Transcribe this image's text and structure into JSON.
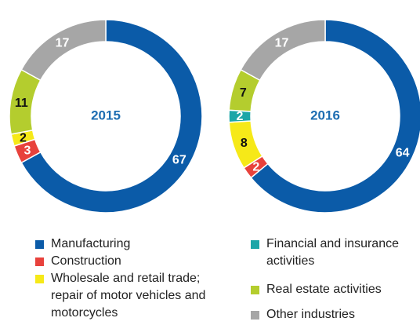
{
  "legend": [
    {
      "name": "Manufacturing",
      "color": "#0b5ba8"
    },
    {
      "name": "Construction",
      "color": "#e8423c"
    },
    {
      "name": "Wholesale and retail trade; repair of motor vehicles and motorcycles",
      "color": "#f6e918"
    },
    {
      "name": "Financial and insurance activities",
      "color": "#1ca6a8"
    },
    {
      "name": "Real estate activities",
      "color": "#b4cd2e"
    },
    {
      "name": "Other industries",
      "color": "#a6a6a6"
    }
  ],
  "chart_data": [
    {
      "type": "pie",
      "title": "2015",
      "values": [
        67,
        3,
        2,
        null,
        11,
        17
      ]
    },
    {
      "type": "pie",
      "title": "2016",
      "values": [
        64,
        2,
        8,
        2,
        7,
        17
      ]
    }
  ]
}
